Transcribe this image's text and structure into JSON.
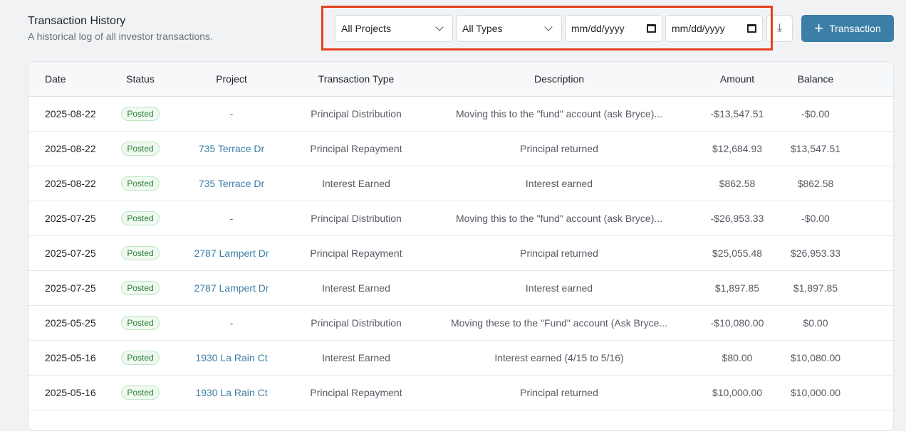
{
  "header": {
    "title": "Transaction History",
    "subtitle": "A historical log of all investor transactions."
  },
  "filters": {
    "project": "All Projects",
    "type": "All Types",
    "start_date": "mm/dd/yyyy",
    "end_date": "mm/dd/yyyy"
  },
  "actions": {
    "add_label": "Transaction"
  },
  "colors": {
    "accent": "#3c7fa6",
    "highlight": "#e5401f",
    "badge_text": "#2e7d3a"
  },
  "table": {
    "columns": [
      "Date",
      "Status",
      "Project",
      "Transaction Type",
      "Description",
      "Amount",
      "Balance"
    ],
    "rows": [
      [
        "2025-08-22",
        "Posted",
        "-",
        "Principal Distribution",
        "Moving this to the \"fund\" account (ask Bryce)...",
        "-$13,547.51",
        "-$0.00"
      ],
      [
        "2025-08-22",
        "Posted",
        "735 Terrace Dr",
        "Principal Repayment",
        "Principal returned",
        "$12,684.93",
        "$13,547.51"
      ],
      [
        "2025-08-22",
        "Posted",
        "735 Terrace Dr",
        "Interest Earned",
        "Interest earned",
        "$862.58",
        "$862.58"
      ],
      [
        "2025-07-25",
        "Posted",
        "-",
        "Principal Distribution",
        "Moving this to the \"fund\" account (ask Bryce)...",
        "-$26,953.33",
        "-$0.00"
      ],
      [
        "2025-07-25",
        "Posted",
        "2787 Lampert Dr",
        "Principal Repayment",
        "Principal returned",
        "$25,055.48",
        "$26,953.33"
      ],
      [
        "2025-07-25",
        "Posted",
        "2787 Lampert Dr",
        "Interest Earned",
        "Interest earned",
        "$1,897.85",
        "$1,897.85"
      ],
      [
        "2025-05-25",
        "Posted",
        "-",
        "Principal Distribution",
        "Moving these to the \"Fund\" account (Ask Bryce...",
        "-$10,080.00",
        "$0.00"
      ],
      [
        "2025-05-16",
        "Posted",
        "1930 La Rain Ct",
        "Interest Earned",
        "Interest earned (4/15 to 5/16)",
        "$80.00",
        "$10,080.00"
      ],
      [
        "2025-05-16",
        "Posted",
        "1930 La Rain Ct",
        "Principal Repayment",
        "Principal returned",
        "$10,000.00",
        "$10,000.00"
      ]
    ]
  }
}
